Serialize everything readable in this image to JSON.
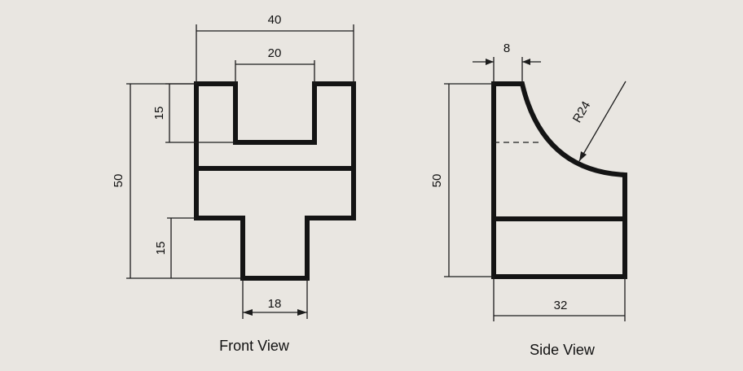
{
  "front_view": {
    "caption": "Front View",
    "dims": {
      "overall_width": "40",
      "slot_width": "20",
      "slot_depth": "15",
      "overall_height": "50",
      "stem_height": "15",
      "stem_width": "18"
    }
  },
  "side_view": {
    "caption": "Side View",
    "dims": {
      "top_width": "8",
      "radius": "R24",
      "overall_height": "50",
      "base_width": "32"
    }
  }
}
